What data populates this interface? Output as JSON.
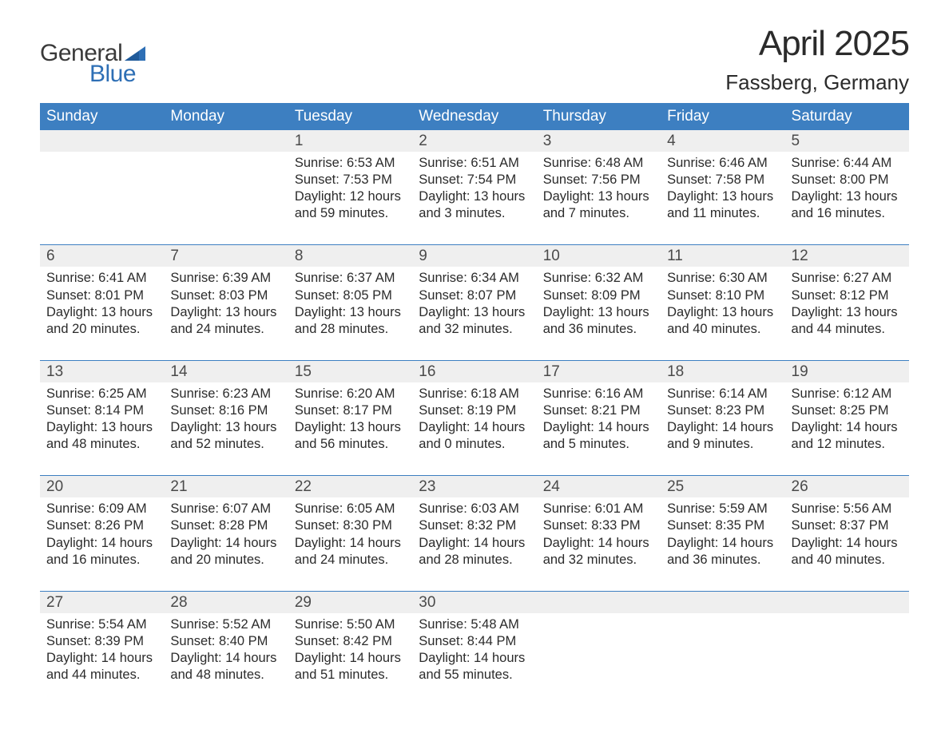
{
  "logo": {
    "general": "General",
    "blue": "Blue",
    "flag_color": "#2e6fb5"
  },
  "title": "April 2025",
  "location": "Fassberg, Germany",
  "header_bg": "#3d7fc1",
  "header_fg": "#ffffff",
  "daynum_bg": "#efefef",
  "text_color": "#2b2b2b",
  "day_headers": [
    "Sunday",
    "Monday",
    "Tuesday",
    "Wednesday",
    "Thursday",
    "Friday",
    "Saturday"
  ],
  "weeks": [
    [
      null,
      null,
      {
        "n": "1",
        "sr": "Sunrise: 6:53 AM",
        "ss": "Sunset: 7:53 PM",
        "dl1": "Daylight: 12 hours",
        "dl2": "and 59 minutes."
      },
      {
        "n": "2",
        "sr": "Sunrise: 6:51 AM",
        "ss": "Sunset: 7:54 PM",
        "dl1": "Daylight: 13 hours",
        "dl2": "and 3 minutes."
      },
      {
        "n": "3",
        "sr": "Sunrise: 6:48 AM",
        "ss": "Sunset: 7:56 PM",
        "dl1": "Daylight: 13 hours",
        "dl2": "and 7 minutes."
      },
      {
        "n": "4",
        "sr": "Sunrise: 6:46 AM",
        "ss": "Sunset: 7:58 PM",
        "dl1": "Daylight: 13 hours",
        "dl2": "and 11 minutes."
      },
      {
        "n": "5",
        "sr": "Sunrise: 6:44 AM",
        "ss": "Sunset: 8:00 PM",
        "dl1": "Daylight: 13 hours",
        "dl2": "and 16 minutes."
      }
    ],
    [
      {
        "n": "6",
        "sr": "Sunrise: 6:41 AM",
        "ss": "Sunset: 8:01 PM",
        "dl1": "Daylight: 13 hours",
        "dl2": "and 20 minutes."
      },
      {
        "n": "7",
        "sr": "Sunrise: 6:39 AM",
        "ss": "Sunset: 8:03 PM",
        "dl1": "Daylight: 13 hours",
        "dl2": "and 24 minutes."
      },
      {
        "n": "8",
        "sr": "Sunrise: 6:37 AM",
        "ss": "Sunset: 8:05 PM",
        "dl1": "Daylight: 13 hours",
        "dl2": "and 28 minutes."
      },
      {
        "n": "9",
        "sr": "Sunrise: 6:34 AM",
        "ss": "Sunset: 8:07 PM",
        "dl1": "Daylight: 13 hours",
        "dl2": "and 32 minutes."
      },
      {
        "n": "10",
        "sr": "Sunrise: 6:32 AM",
        "ss": "Sunset: 8:09 PM",
        "dl1": "Daylight: 13 hours",
        "dl2": "and 36 minutes."
      },
      {
        "n": "11",
        "sr": "Sunrise: 6:30 AM",
        "ss": "Sunset: 8:10 PM",
        "dl1": "Daylight: 13 hours",
        "dl2": "and 40 minutes."
      },
      {
        "n": "12",
        "sr": "Sunrise: 6:27 AM",
        "ss": "Sunset: 8:12 PM",
        "dl1": "Daylight: 13 hours",
        "dl2": "and 44 minutes."
      }
    ],
    [
      {
        "n": "13",
        "sr": "Sunrise: 6:25 AM",
        "ss": "Sunset: 8:14 PM",
        "dl1": "Daylight: 13 hours",
        "dl2": "and 48 minutes."
      },
      {
        "n": "14",
        "sr": "Sunrise: 6:23 AM",
        "ss": "Sunset: 8:16 PM",
        "dl1": "Daylight: 13 hours",
        "dl2": "and 52 minutes."
      },
      {
        "n": "15",
        "sr": "Sunrise: 6:20 AM",
        "ss": "Sunset: 8:17 PM",
        "dl1": "Daylight: 13 hours",
        "dl2": "and 56 minutes."
      },
      {
        "n": "16",
        "sr": "Sunrise: 6:18 AM",
        "ss": "Sunset: 8:19 PM",
        "dl1": "Daylight: 14 hours",
        "dl2": "and 0 minutes."
      },
      {
        "n": "17",
        "sr": "Sunrise: 6:16 AM",
        "ss": "Sunset: 8:21 PM",
        "dl1": "Daylight: 14 hours",
        "dl2": "and 5 minutes."
      },
      {
        "n": "18",
        "sr": "Sunrise: 6:14 AM",
        "ss": "Sunset: 8:23 PM",
        "dl1": "Daylight: 14 hours",
        "dl2": "and 9 minutes."
      },
      {
        "n": "19",
        "sr": "Sunrise: 6:12 AM",
        "ss": "Sunset: 8:25 PM",
        "dl1": "Daylight: 14 hours",
        "dl2": "and 12 minutes."
      }
    ],
    [
      {
        "n": "20",
        "sr": "Sunrise: 6:09 AM",
        "ss": "Sunset: 8:26 PM",
        "dl1": "Daylight: 14 hours",
        "dl2": "and 16 minutes."
      },
      {
        "n": "21",
        "sr": "Sunrise: 6:07 AM",
        "ss": "Sunset: 8:28 PM",
        "dl1": "Daylight: 14 hours",
        "dl2": "and 20 minutes."
      },
      {
        "n": "22",
        "sr": "Sunrise: 6:05 AM",
        "ss": "Sunset: 8:30 PM",
        "dl1": "Daylight: 14 hours",
        "dl2": "and 24 minutes."
      },
      {
        "n": "23",
        "sr": "Sunrise: 6:03 AM",
        "ss": "Sunset: 8:32 PM",
        "dl1": "Daylight: 14 hours",
        "dl2": "and 28 minutes."
      },
      {
        "n": "24",
        "sr": "Sunrise: 6:01 AM",
        "ss": "Sunset: 8:33 PM",
        "dl1": "Daylight: 14 hours",
        "dl2": "and 32 minutes."
      },
      {
        "n": "25",
        "sr": "Sunrise: 5:59 AM",
        "ss": "Sunset: 8:35 PM",
        "dl1": "Daylight: 14 hours",
        "dl2": "and 36 minutes."
      },
      {
        "n": "26",
        "sr": "Sunrise: 5:56 AM",
        "ss": "Sunset: 8:37 PM",
        "dl1": "Daylight: 14 hours",
        "dl2": "and 40 minutes."
      }
    ],
    [
      {
        "n": "27",
        "sr": "Sunrise: 5:54 AM",
        "ss": "Sunset: 8:39 PM",
        "dl1": "Daylight: 14 hours",
        "dl2": "and 44 minutes."
      },
      {
        "n": "28",
        "sr": "Sunrise: 5:52 AM",
        "ss": "Sunset: 8:40 PM",
        "dl1": "Daylight: 14 hours",
        "dl2": "and 48 minutes."
      },
      {
        "n": "29",
        "sr": "Sunrise: 5:50 AM",
        "ss": "Sunset: 8:42 PM",
        "dl1": "Daylight: 14 hours",
        "dl2": "and 51 minutes."
      },
      {
        "n": "30",
        "sr": "Sunrise: 5:48 AM",
        "ss": "Sunset: 8:44 PM",
        "dl1": "Daylight: 14 hours",
        "dl2": "and 55 minutes."
      },
      null,
      null,
      null
    ]
  ]
}
